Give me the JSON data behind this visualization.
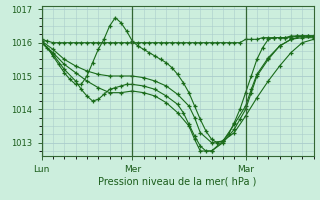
{
  "xlabel": "Pression niveau de la mer( hPa )",
  "bg_color": "#cceedd",
  "grid_color": "#aacccc",
  "line_color": "#1a6b1a",
  "ylim": [
    1012.6,
    1017.1
  ],
  "xlim": [
    0,
    48
  ],
  "yticks": [
    1013,
    1014,
    1015,
    1016,
    1017
  ],
  "xtick_labels": [
    "Lun",
    "Mer",
    "Mar"
  ],
  "xtick_positions": [
    0,
    16,
    36
  ],
  "series": [
    {
      "x": [
        0,
        1,
        2,
        3,
        4,
        5,
        6,
        7,
        8,
        9,
        10,
        11,
        12,
        13,
        14,
        15,
        16,
        17,
        18,
        19,
        20,
        21,
        22,
        23,
        24,
        25,
        26,
        27,
        28,
        29,
        30,
        31,
        32,
        33,
        34,
        35,
        36,
        37,
        38,
        39,
        40,
        41,
        42,
        43,
        44,
        45,
        46,
        47,
        48
      ],
      "y": [
        1016.1,
        1016.05,
        1016.0,
        1016.0,
        1016.0,
        1016.0,
        1016.0,
        1016.0,
        1016.0,
        1016.0,
        1016.0,
        1016.0,
        1016.0,
        1016.0,
        1016.0,
        1016.0,
        1016.0,
        1016.0,
        1016.0,
        1016.0,
        1016.0,
        1016.0,
        1016.0,
        1016.0,
        1016.0,
        1016.0,
        1016.0,
        1016.0,
        1016.0,
        1016.0,
        1016.0,
        1016.0,
        1016.0,
        1016.0,
        1016.0,
        1016.0,
        1016.1,
        1016.1,
        1016.1,
        1016.15,
        1016.15,
        1016.15,
        1016.15,
        1016.15,
        1016.2,
        1016.2,
        1016.2,
        1016.2,
        1016.2
      ]
    },
    {
      "x": [
        0,
        2,
        4,
        6,
        8,
        10,
        12,
        14,
        16,
        18,
        20,
        22,
        24,
        26,
        27,
        28,
        30,
        32,
        34,
        36,
        38,
        40,
        42,
        44,
        46,
        48
      ],
      "y": [
        1016.05,
        1015.8,
        1015.5,
        1015.3,
        1015.15,
        1015.05,
        1015.0,
        1015.0,
        1015.0,
        1014.95,
        1014.85,
        1014.7,
        1014.45,
        1014.1,
        1013.75,
        1013.3,
        1013.0,
        1013.05,
        1013.3,
        1013.8,
        1014.35,
        1014.85,
        1015.3,
        1015.7,
        1016.0,
        1016.1
      ]
    },
    {
      "x": [
        0,
        1,
        2,
        3,
        4,
        5,
        6,
        7,
        8,
        9,
        10,
        11,
        12,
        13,
        14,
        15,
        16,
        17,
        18,
        19,
        20,
        21,
        22,
        23,
        24,
        25,
        26,
        27,
        28,
        29,
        30,
        31,
        32,
        33,
        34,
        35,
        36,
        37,
        38,
        39,
        40,
        41,
        42,
        43,
        44,
        45,
        46,
        47,
        48
      ],
      "y": [
        1016.05,
        1015.85,
        1015.6,
        1015.35,
        1015.1,
        1014.9,
        1014.75,
        1014.75,
        1015.0,
        1015.4,
        1015.8,
        1016.1,
        1016.5,
        1016.75,
        1016.6,
        1016.35,
        1016.05,
        1015.9,
        1015.8,
        1015.7,
        1015.6,
        1015.5,
        1015.4,
        1015.25,
        1015.05,
        1014.8,
        1014.5,
        1014.1,
        1013.7,
        1013.35,
        1013.1,
        1013.0,
        1013.05,
        1013.25,
        1013.6,
        1014.0,
        1014.5,
        1015.0,
        1015.5,
        1015.85,
        1016.1,
        1016.15,
        1016.15,
        1016.15,
        1016.15,
        1016.2,
        1016.2,
        1016.2,
        1016.2
      ]
    },
    {
      "x": [
        0,
        2,
        4,
        6,
        8,
        10,
        12,
        14,
        16,
        18,
        20,
        22,
        24,
        26,
        27,
        28,
        30,
        32,
        34,
        35,
        36,
        37,
        38,
        40,
        42,
        44,
        46,
        48
      ],
      "y": [
        1016.0,
        1015.7,
        1015.35,
        1015.1,
        1014.85,
        1014.65,
        1014.5,
        1014.5,
        1014.55,
        1014.5,
        1014.4,
        1014.2,
        1013.9,
        1013.5,
        1013.1,
        1012.75,
        1012.75,
        1013.0,
        1013.4,
        1013.7,
        1014.0,
        1014.5,
        1015.0,
        1015.5,
        1015.9,
        1016.1,
        1016.15,
        1016.15
      ]
    },
    {
      "x": [
        0,
        2,
        4,
        6,
        7,
        8,
        9,
        10,
        11,
        12,
        13,
        14,
        15,
        16,
        18,
        20,
        22,
        24,
        25,
        26,
        27,
        28,
        29,
        30,
        32,
        34,
        36,
        37,
        38,
        40,
        42,
        44,
        46,
        48
      ],
      "y": [
        1016.0,
        1015.65,
        1015.2,
        1014.85,
        1014.6,
        1014.4,
        1014.25,
        1014.3,
        1014.45,
        1014.6,
        1014.65,
        1014.7,
        1014.75,
        1014.75,
        1014.7,
        1014.6,
        1014.4,
        1014.15,
        1013.9,
        1013.55,
        1013.2,
        1012.9,
        1012.75,
        1012.75,
        1013.05,
        1013.55,
        1014.1,
        1014.6,
        1015.05,
        1015.55,
        1015.9,
        1016.1,
        1016.2,
        1016.2
      ]
    }
  ]
}
